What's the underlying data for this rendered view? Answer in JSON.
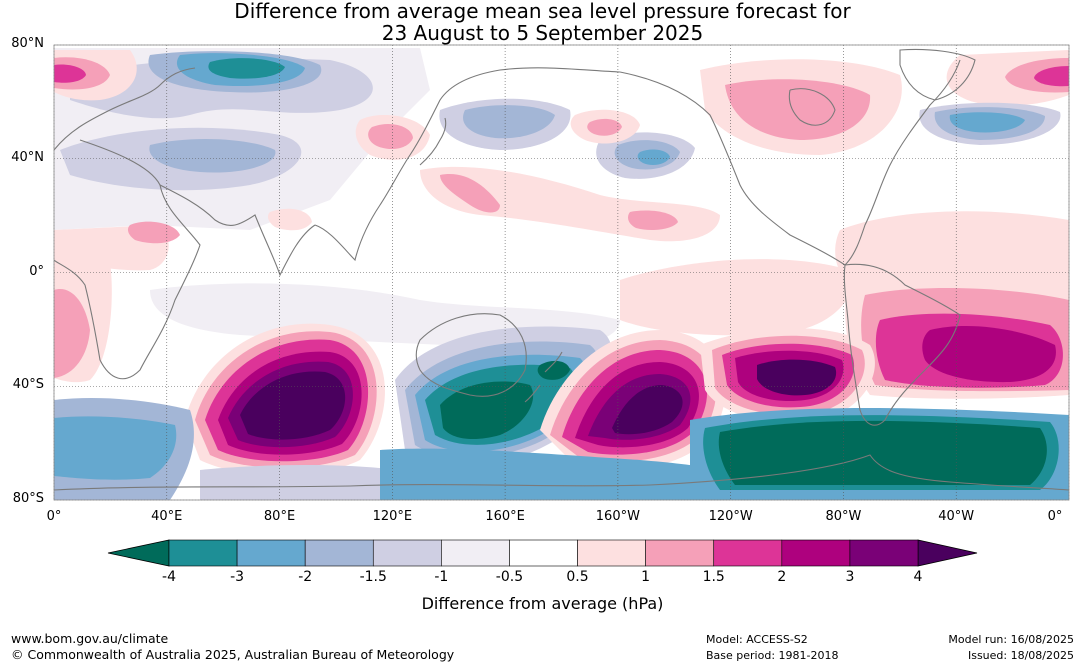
{
  "title": {
    "line1": "Difference from average mean sea level pressure forecast for",
    "line2": "23 August to 5 September 2025"
  },
  "map": {
    "projection": "equirectangular",
    "lon_range_east": [
      0,
      360
    ],
    "lat_range": [
      -80,
      80
    ],
    "grid": true,
    "lat_labels": [
      "80°N",
      "40°N",
      "0°",
      "40°S",
      "80°S"
    ],
    "lon_labels": [
      "0°",
      "40°E",
      "80°E",
      "120°E",
      "160°E",
      "160°W",
      "120°W",
      "80°W",
      "40°W",
      "0°"
    ],
    "anomaly_features": [
      {
        "region": "North Atlantic / Greenland Sea",
        "lon": 5,
        "lat": 70,
        "value": 2.0
      },
      {
        "region": "Arctic Russia",
        "lon": 75,
        "lat": 72,
        "value": -3.0
      },
      {
        "region": "Central Asia",
        "lon": 70,
        "lat": 42,
        "value": -1.5
      },
      {
        "region": "Sea of Japan",
        "lon": 135,
        "lat": 47,
        "value": 1.5
      },
      {
        "region": "North Pacific",
        "lon": 165,
        "lat": 50,
        "value": -2.0
      },
      {
        "region": "Gulf of Alaska",
        "lon": 190,
        "lat": 53,
        "value": 1.5
      },
      {
        "region": "NE Pacific",
        "lon": 207,
        "lat": 40,
        "value": -2.0
      },
      {
        "region": "Canada / Hudson Bay",
        "lon": 268,
        "lat": 60,
        "value": 1.5
      },
      {
        "region": "North Atlantic",
        "lon": 320,
        "lat": 52,
        "value": -2.0
      },
      {
        "region": "Tropical Africa",
        "lon": 5,
        "lat": -10,
        "value": 1.5
      },
      {
        "region": "Southern Indian Ocean",
        "lon": 90,
        "lat": -48,
        "value": 4.0
      },
      {
        "region": "Tasman Sea",
        "lon": 150,
        "lat": -48,
        "value": -4.0
      },
      {
        "region": "South of New Zealand",
        "lon": 177,
        "lat": -35,
        "value": -3.0
      },
      {
        "region": "South Pacific (central)",
        "lon": 215,
        "lat": -48,
        "value": 4.0
      },
      {
        "region": "South Pacific (east)",
        "lon": 262,
        "lat": -40,
        "value": 4.0
      },
      {
        "region": "Southern South Atlantic",
        "lon": 300,
        "lat": -70,
        "value": -4.0
      },
      {
        "region": "South Atlantic",
        "lon": 320,
        "lat": -30,
        "value": 3.0
      },
      {
        "region": "Antarctic coast Indian sector",
        "lon": 30,
        "lat": -60,
        "value": -2.0
      }
    ]
  },
  "colorbar": {
    "ticks": [
      "-4",
      "-3",
      "-2",
      "-1.5",
      "-1",
      "-0.5",
      "0.5",
      "1",
      "1.5",
      "2",
      "3",
      "4"
    ],
    "under_color": "#006b5a",
    "over_color": "#4a005e",
    "bins": [
      "#1e8f96",
      "#65a8cf",
      "#a3b6d6",
      "#cfcfe3",
      "#f1eef4",
      "#ffffff",
      "#fde0e0",
      "#f5a0b8",
      "#dd3497",
      "#ae017e",
      "#7a0177"
    ],
    "label": "Difference from average (hPa)"
  },
  "footer": {
    "url": "www.bom.gov.au/climate",
    "copyright": "© Commonwealth of Australia 2025, Australian Bureau of Meteorology",
    "model": "Model: ACCESS-S2",
    "base_period": "Base period: 1981-2018",
    "model_run": "Model run: 16/08/2025",
    "issued": "Issued: 18/08/2025"
  }
}
